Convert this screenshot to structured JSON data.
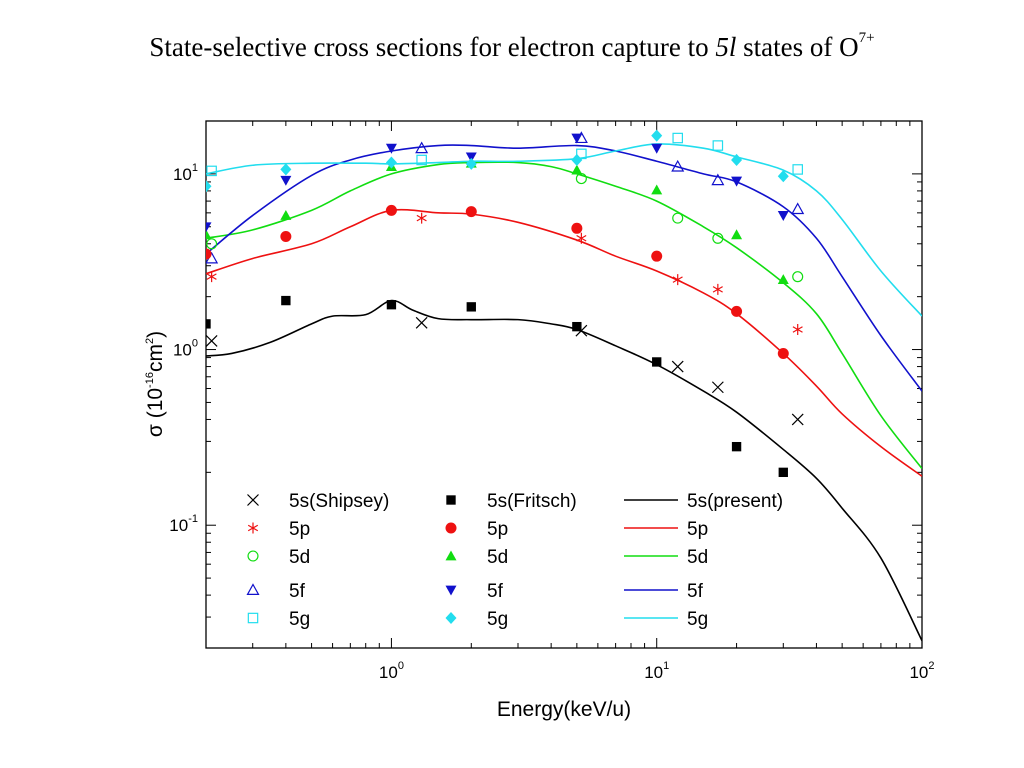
{
  "title": {
    "main": "State-selective cross sections for electron capture to ",
    "italic": "5l",
    "middle": " states of O",
    "superscript": "7+"
  },
  "chart_data": {
    "type": "scatter",
    "xscale": "log",
    "yscale": "log",
    "xlim": [
      0.2,
      100
    ],
    "ylim": [
      0.02,
      20
    ],
    "xlabel": "Energy(keV/u)",
    "ylabel": {
      "base": "σ (10",
      "exp1": "-16",
      "mid": "cm",
      "exp2": "2",
      "end": ")"
    },
    "xticks": [
      {
        "base": "10",
        "exp": "0",
        "value": 1
      },
      {
        "base": "10",
        "exp": "1",
        "value": 10
      },
      {
        "base": "10",
        "exp": "2",
        "value": 100
      }
    ],
    "yticks": [
      {
        "base": "10",
        "exp": "-1",
        "value": 0.1
      },
      {
        "base": "10",
        "exp": "0",
        "value": 1
      },
      {
        "base": "10",
        "exp": "1",
        "value": 10
      }
    ],
    "grid": false,
    "legend_position": "bottom-left",
    "colors": {
      "5s": "#000000",
      "5p": "#ee1111",
      "5d": "#11dd11",
      "5f": "#1111cc",
      "5g": "#22ddee"
    },
    "series": [
      {
        "name": "5s(Shipsey)",
        "marker": "x",
        "color": "#000000",
        "x": [
          0.21,
          1.3,
          5.2,
          12,
          17,
          34
        ],
        "y": [
          1.12,
          1.42,
          1.28,
          0.8,
          0.61,
          0.4
        ]
      },
      {
        "name": "5p",
        "marker": "asterisk",
        "color": "#ee1111",
        "x": [
          0.21,
          1.3,
          5.2,
          12,
          17,
          34
        ],
        "y": [
          2.6,
          5.6,
          4.3,
          2.5,
          2.2,
          1.3
        ]
      },
      {
        "name": "5d",
        "marker": "circle-open",
        "color": "#11dd11",
        "x": [
          0.21,
          5.2,
          12,
          17,
          34
        ],
        "y": [
          4.0,
          9.4,
          5.6,
          4.3,
          2.6
        ]
      },
      {
        "name": "5f",
        "marker": "triangle-up-open",
        "color": "#1111cc",
        "x": [
          0.21,
          1.3,
          5.2,
          12,
          17,
          34
        ],
        "y": [
          3.3,
          14,
          16,
          11,
          9.2,
          6.3
        ]
      },
      {
        "name": "5g",
        "marker": "square-open",
        "color": "#22ddee",
        "x": [
          0.21,
          1.3,
          5.2,
          12,
          17,
          34
        ],
        "y": [
          10.4,
          12,
          13,
          16,
          14.5,
          10.6
        ]
      },
      {
        "name": "5s(Fritsch)",
        "marker": "square-filled",
        "color": "#000000",
        "x": [
          0.2,
          0.4,
          1.0,
          2.0,
          5.0,
          10,
          20,
          30
        ],
        "y": [
          1.4,
          1.9,
          1.8,
          1.75,
          1.35,
          0.85,
          0.28,
          0.2
        ]
      },
      {
        "name": "5p",
        "marker": "circle-filled",
        "color": "#ee1111",
        "x": [
          0.2,
          0.4,
          1.0,
          2.0,
          5.0,
          10,
          20,
          30
        ],
        "y": [
          3.5,
          4.4,
          6.2,
          6.1,
          4.9,
          3.4,
          1.65,
          0.95
        ]
      },
      {
        "name": "5d",
        "marker": "triangle-up-filled",
        "color": "#11dd11",
        "x": [
          0.2,
          0.4,
          1.0,
          2.0,
          5.0,
          10,
          20,
          30
        ],
        "y": [
          4.5,
          5.8,
          11,
          11.5,
          10.5,
          8.1,
          4.5,
          2.5
        ]
      },
      {
        "name": "5f",
        "marker": "triangle-down-filled",
        "color": "#1111cc",
        "x": [
          0.2,
          0.4,
          1.0,
          2.0,
          5.0,
          10,
          20,
          30
        ],
        "y": [
          5.0,
          9.2,
          14,
          12.5,
          16,
          14,
          9.1,
          5.8
        ]
      },
      {
        "name": "5g",
        "marker": "diamond-filled",
        "color": "#22ddee",
        "x": [
          0.2,
          0.4,
          1.0,
          2.0,
          5.0,
          10,
          20,
          30
        ],
        "y": [
          8.5,
          10.6,
          11.6,
          11.4,
          12,
          16.5,
          12,
          9.7
        ]
      },
      {
        "name": "5s(present)",
        "marker": "line",
        "color": "#000000",
        "x": [
          0.2,
          0.25,
          0.35,
          0.5,
          0.6,
          0.8,
          1.0,
          1.2,
          1.5,
          2.0,
          3.0,
          4.0,
          5.0,
          7.0,
          10,
          15,
          20,
          30,
          40,
          50,
          70,
          100
        ],
        "y": [
          0.92,
          0.95,
          1.1,
          1.4,
          1.55,
          1.58,
          1.9,
          1.68,
          1.5,
          1.48,
          1.48,
          1.4,
          1.3,
          1.05,
          0.82,
          0.58,
          0.44,
          0.27,
          0.185,
          0.125,
          0.065,
          0.022
        ]
      },
      {
        "name": "5p",
        "marker": "line",
        "color": "#ee1111",
        "x": [
          0.2,
          0.3,
          0.5,
          0.7,
          1.0,
          1.5,
          2.0,
          3.0,
          5.0,
          7.0,
          10,
          15,
          20,
          30,
          40,
          50,
          70,
          100
        ],
        "y": [
          2.7,
          3.3,
          4.0,
          5.0,
          6.2,
          6.0,
          5.9,
          5.3,
          4.2,
          3.4,
          2.8,
          2.1,
          1.6,
          0.95,
          0.62,
          0.43,
          0.28,
          0.19
        ]
      },
      {
        "name": "5d",
        "marker": "line",
        "color": "#11dd11",
        "x": [
          0.2,
          0.3,
          0.5,
          0.7,
          1.0,
          1.5,
          2.0,
          3.0,
          4.0,
          5.0,
          7.0,
          10,
          15,
          20,
          30,
          40,
          50,
          70,
          100
        ],
        "y": [
          4.3,
          4.8,
          6.2,
          8.0,
          10.0,
          11.3,
          11.6,
          11.6,
          11.0,
          10.0,
          8.5,
          7.0,
          5.0,
          3.8,
          2.4,
          1.6,
          0.95,
          0.42,
          0.21
        ]
      },
      {
        "name": "5f",
        "marker": "line",
        "color": "#1111cc",
        "x": [
          0.2,
          0.3,
          0.5,
          0.7,
          1.0,
          1.5,
          2.0,
          3.0,
          5.0,
          7.0,
          10,
          15,
          20,
          30,
          40,
          50,
          70,
          100
        ],
        "y": [
          3.5,
          5.8,
          9.8,
          12.0,
          13.5,
          14.5,
          14.5,
          14.0,
          14.5,
          13.5,
          11.8,
          10.0,
          9.0,
          6.5,
          4.3,
          2.6,
          1.2,
          0.58
        ]
      },
      {
        "name": "5g",
        "marker": "line",
        "color": "#22ddee",
        "x": [
          0.2,
          0.3,
          0.5,
          0.8,
          1.0,
          1.5,
          2.0,
          3.0,
          5.0,
          7.0,
          10,
          15,
          20,
          30,
          40,
          50,
          70,
          100
        ],
        "y": [
          10.0,
          11.2,
          11.5,
          11.5,
          11.4,
          11.6,
          11.8,
          11.8,
          12.2,
          13.5,
          14.8,
          14.0,
          12.5,
          10.5,
          8.0,
          5.5,
          2.8,
          1.55
        ]
      }
    ]
  }
}
